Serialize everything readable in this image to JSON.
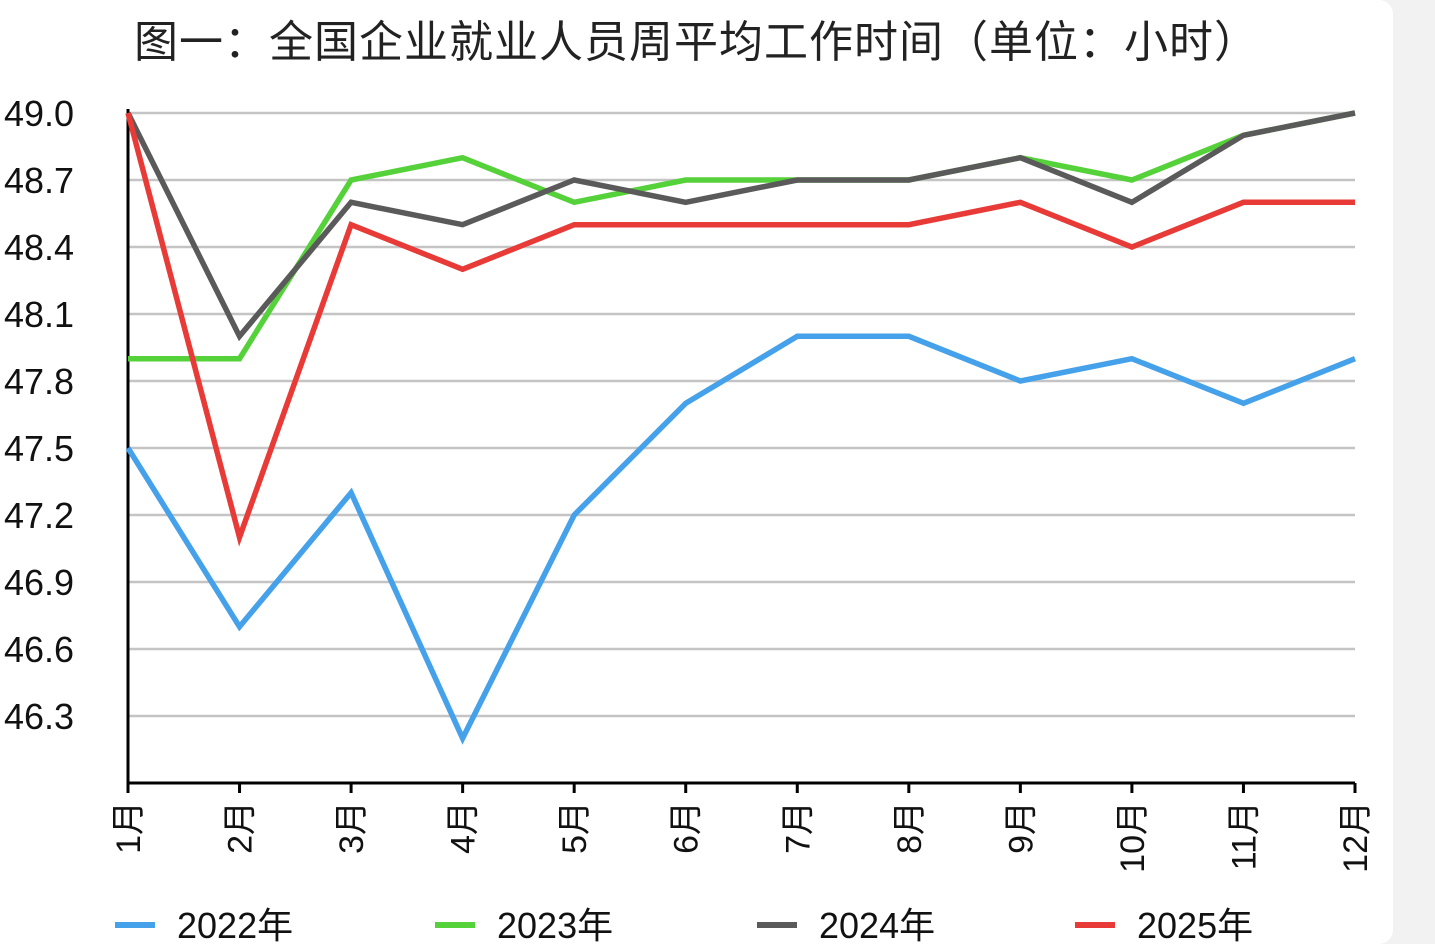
{
  "chart_data": {
    "type": "line",
    "title": "图一：全国企业就业人员周平均工作时间（单位：小时）",
    "categories": [
      "1月",
      "2月",
      "3月",
      "4月",
      "5月",
      "6月",
      "7月",
      "8月",
      "9月",
      "10月",
      "11月",
      "12月"
    ],
    "yticks": [
      "49.0",
      "48.7",
      "48.4",
      "48.1",
      "47.8",
      "47.5",
      "47.2",
      "46.9",
      "46.6",
      "46.3"
    ],
    "ylim": [
      46.0,
      49.0
    ],
    "grid": true,
    "legend_position": "bottom",
    "series": [
      {
        "name": "2022年",
        "color": "#45a1ea",
        "values": [
          47.5,
          46.7,
          47.3,
          46.2,
          47.2,
          47.7,
          48.0,
          48.0,
          47.8,
          47.9,
          47.7,
          47.9
        ]
      },
      {
        "name": "2023年",
        "color": "#55d13a",
        "values": [
          47.9,
          47.9,
          48.7,
          48.8,
          48.6,
          48.7,
          48.7,
          48.7,
          48.8,
          48.7,
          48.9,
          49.0
        ]
      },
      {
        "name": "2024年",
        "color": "#5a5a5a",
        "values": [
          49.0,
          48.0,
          48.6,
          48.5,
          48.7,
          48.6,
          48.7,
          48.7,
          48.8,
          48.6,
          48.9,
          49.0
        ]
      },
      {
        "name": "2025年",
        "color": "#e83a36",
        "values": [
          49.0,
          47.1,
          48.5,
          48.3,
          48.5,
          48.5,
          48.5,
          48.5,
          48.6,
          48.4,
          48.6,
          48.6
        ]
      }
    ]
  }
}
